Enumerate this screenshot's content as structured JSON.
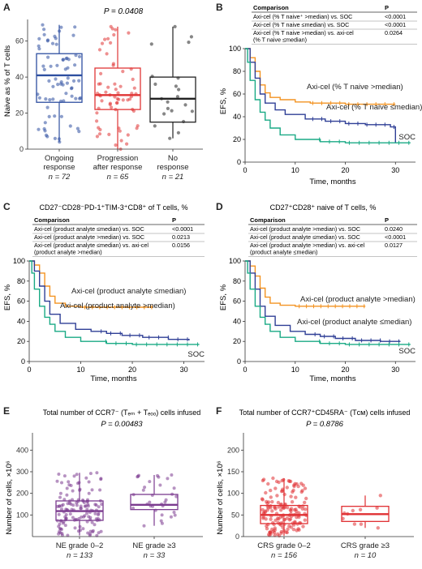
{
  "panels": {
    "A": {
      "letter": "A",
      "pvalue": "P = 0.0408",
      "ylabel": "Naive as % of T cells",
      "yticks": [
        "0",
        "20",
        "40",
        "60"
      ],
      "groups": [
        {
          "line1": "Ongoing",
          "line2": "response",
          "n": "n = 72"
        },
        {
          "line1": "Progression",
          "line2": "after response",
          "n": "n = 65"
        },
        {
          "line1": "No",
          "line2": "response",
          "n": "n = 21"
        }
      ]
    },
    "B": {
      "letter": "B",
      "table_headers": [
        "Comparison",
        "P"
      ],
      "table_rows": [
        [
          "Axi-cel (% T naive⁺ >median) vs. SOC",
          "<0.0001"
        ],
        [
          "Axi-cel (% T naive ≤median) vs. SOC",
          "<0.0001"
        ],
        [
          "Axi-cel (% T naive >median) vs. axi-cel",
          "0.0264"
        ],
        [
          "(% T naive ≤median)",
          ""
        ]
      ],
      "ylabel": "EFS, %",
      "xlabel": "Time, months",
      "yticks": [
        "0",
        "20",
        "40",
        "60",
        "80",
        "100"
      ],
      "xticks": [
        "0",
        "10",
        "20",
        "30"
      ],
      "curve_labels": [
        "Axi-cel (% T naive >median)",
        "Axi-cel (% T naive ≤median)",
        "SOC"
      ]
    },
    "C": {
      "letter": "C",
      "title": "CD27⁻CD28⁻PD-1⁺TIM-3⁺CD8⁺ of T cells, %",
      "table_headers": [
        "Comparison",
        "P"
      ],
      "table_rows": [
        [
          "Axi-cel (product analyte ≤median) vs. SOC",
          "<0.0001"
        ],
        [
          "Axi-cel (product analyte >median) vs. SOC",
          "0.0213"
        ],
        [
          "Axi-cel (product analyte ≤median) vs. axi-cel",
          "0.0156"
        ],
        [
          "(product analyte >median)",
          ""
        ]
      ],
      "ylabel": "EFS, %",
      "xlabel": "Time, months",
      "yticks": [
        "0",
        "20",
        "40",
        "60",
        "80",
        "100"
      ],
      "xticks": [
        "0",
        "10",
        "20",
        "30"
      ],
      "curve_labels": [
        "Axi-cel (product analyte ≤median)",
        "Axi-cel (product analyte >median)",
        "SOC"
      ]
    },
    "D": {
      "letter": "D",
      "title": "CD27⁺CD28⁺ naive of T cells, %",
      "table_headers": [
        "Comparison",
        "P"
      ],
      "table_rows": [
        [
          "Axi-cel (product analyte >median) vs. SOC",
          "0.0240"
        ],
        [
          "Axi-cel (product analyte ≤median) vs. SOC",
          "<0.0001"
        ],
        [
          "Axi-cel (product analyte >median) vs. axi-cel",
          "0.0127"
        ],
        [
          "(product analyte ≤median)",
          ""
        ]
      ],
      "ylabel": "EFS, %",
      "xlabel": "Time, months",
      "yticks": [
        "0",
        "20",
        "40",
        "60",
        "80",
        "100"
      ],
      "xticks": [
        "0",
        "10",
        "20",
        "30"
      ],
      "curve_labels": [
        "Axi-cel (product analyte >median)",
        "Axi-cel (product analyte ≤median)",
        "SOC"
      ]
    },
    "E": {
      "letter": "E",
      "title": "Total number of CCR7⁻ (Tₑₘ + Tₑₒₒ) cells infused",
      "pvalue": "P = 0.00483",
      "ylabel": "Number of cells, ×10⁶",
      "yticks": [
        "100",
        "200",
        "300",
        "400"
      ],
      "groups": [
        {
          "line1": "NE grade 0–2",
          "n": "n = 133"
        },
        {
          "line1": "NE grade ≥3",
          "n": "n = 33"
        }
      ]
    },
    "F": {
      "letter": "F",
      "title": "Total number of CCR7⁺CD45RA⁻ (Tᴄᴍ) cells infused",
      "pvalue": "P = 0.8786",
      "ylabel": "Number of cells, ×10⁶",
      "yticks": [
        "0",
        "50",
        "100",
        "150",
        "200"
      ],
      "groups": [
        {
          "line1": "CRS grade 0–2",
          "n": "n = 156"
        },
        {
          "line1": "CRS grade ≥3",
          "n": "n = 10"
        }
      ]
    }
  },
  "colors": {
    "blue": "#2e4fa0",
    "red": "#e03535",
    "black": "#222222",
    "orange": "#f39322",
    "navy": "#2f3f96",
    "green": "#1aaa85",
    "purple": "#7b3b8f",
    "crimson": "#e03033"
  },
  "chart_data": [
    {
      "type": "box",
      "panel": "A",
      "ylabel": "Naive as % of T cells",
      "ylim": [
        0,
        72
      ],
      "categories": [
        "Ongoing response",
        "Progression after response",
        "No response"
      ],
      "n": [
        72,
        65,
        21
      ],
      "boxes": [
        {
          "min": 4,
          "q1": 26,
          "median": 41,
          "q3": 53,
          "max": 69
        },
        {
          "min": 0,
          "q1": 22,
          "median": 30,
          "q3": 45,
          "max": 68
        },
        {
          "min": 6,
          "q1": 15,
          "median": 28,
          "q3": 40,
          "max": 68
        }
      ],
      "pvalue": 0.0408
    },
    {
      "type": "line",
      "panel": "B",
      "xlabel": "Time, months",
      "ylabel": "EFS, %",
      "xlim": [
        0,
        34
      ],
      "ylim": [
        0,
        100
      ],
      "series": [
        {
          "name": "Axi-cel (% T naive >median)",
          "x": [
            0,
            1,
            2,
            3,
            4,
            5,
            7,
            10,
            13,
            20,
            30
          ],
          "y": [
            100,
            92,
            80,
            68,
            61,
            57,
            55,
            53,
            52,
            51,
            51
          ]
        },
        {
          "name": "Axi-cel (% T naive ≤median)",
          "x": [
            0,
            1,
            2,
            3,
            4,
            6,
            8,
            12,
            16,
            20,
            24,
            29,
            30
          ],
          "y": [
            100,
            88,
            74,
            60,
            52,
            46,
            42,
            38,
            36,
            34,
            33,
            31,
            17
          ]
        },
        {
          "name": "SOC",
          "x": [
            0,
            0.5,
            1,
            2,
            3,
            4,
            5,
            7,
            10,
            15,
            20,
            30,
            33
          ],
          "y": [
            100,
            88,
            72,
            55,
            44,
            37,
            30,
            24,
            20,
            18,
            17,
            17,
            17
          ]
        }
      ]
    },
    {
      "type": "line",
      "panel": "C",
      "xlabel": "Time, months",
      "ylabel": "EFS, %",
      "xlim": [
        0,
        34
      ],
      "ylim": [
        0,
        100
      ],
      "series": [
        {
          "name": "Axi-cel (product analyte ≤median)",
          "x": [
            0,
            1,
            2,
            3,
            4,
            5,
            7,
            10,
            15,
            20,
            24
          ],
          "y": [
            100,
            96,
            88,
            75,
            65,
            58,
            55,
            54,
            54,
            54,
            54
          ]
        },
        {
          "name": "Axi-cel (product analyte >median)",
          "x": [
            0,
            1,
            2,
            3,
            4,
            6,
            9,
            12,
            15,
            18,
            22,
            27,
            31
          ],
          "y": [
            100,
            90,
            75,
            60,
            47,
            38,
            32,
            30,
            28,
            26,
            24,
            22,
            21
          ]
        },
        {
          "name": "SOC",
          "x": [
            0,
            0.5,
            1,
            2,
            3,
            4,
            5,
            7,
            10,
            15,
            20,
            30,
            33
          ],
          "y": [
            100,
            88,
            72,
            55,
            44,
            37,
            30,
            24,
            20,
            18,
            17,
            17,
            17
          ]
        }
      ]
    },
    {
      "type": "line",
      "panel": "D",
      "xlabel": "Time, months",
      "ylabel": "EFS, %",
      "xlim": [
        0,
        34
      ],
      "ylim": [
        0,
        100
      ],
      "series": [
        {
          "name": "Axi-cel (product analyte >median)",
          "x": [
            0,
            1,
            2,
            3,
            4,
            5,
            7,
            10,
            15,
            20,
            24
          ],
          "y": [
            100,
            95,
            85,
            73,
            64,
            58,
            56,
            55,
            55,
            55,
            55
          ]
        },
        {
          "name": "Axi-cel (product analyte ≤median)",
          "x": [
            0,
            1,
            2,
            3,
            4,
            6,
            9,
            12,
            15,
            18,
            22,
            27,
            31
          ],
          "y": [
            100,
            88,
            72,
            55,
            45,
            36,
            30,
            27,
            25,
            23,
            21,
            20,
            20
          ]
        },
        {
          "name": "SOC",
          "x": [
            0,
            0.5,
            1,
            2,
            3,
            4,
            5,
            7,
            10,
            15,
            20,
            30,
            33
          ],
          "y": [
            100,
            88,
            72,
            55,
            44,
            37,
            30,
            24,
            20,
            18,
            17,
            17,
            17
          ]
        }
      ]
    },
    {
      "type": "box",
      "panel": "E",
      "ylabel": "Number of cells, ×10⁶",
      "ylim": [
        0,
        480
      ],
      "categories": [
        "NE grade 0–2",
        "NE grade ≥3"
      ],
      "n": [
        133,
        33
      ],
      "boxes": [
        {
          "min": 5,
          "q1": 75,
          "median": 118,
          "q3": 165,
          "max": 295
        },
        {
          "min": 50,
          "q1": 125,
          "median": 147,
          "q3": 195,
          "max": 285
        }
      ],
      "pvalue": 0.00483
    },
    {
      "type": "box",
      "panel": "F",
      "ylabel": "Number of cells, ×10⁶",
      "ylim": [
        0,
        240
      ],
      "categories": [
        "CRS grade 0–2",
        "CRS grade ≥3"
      ],
      "n": [
        156,
        10
      ],
      "boxes": [
        {
          "min": 2,
          "q1": 30,
          "median": 50,
          "q3": 72,
          "max": 135
        },
        {
          "min": 20,
          "q1": 35,
          "median": 52,
          "q3": 70,
          "max": 95
        }
      ],
      "pvalue": 0.8786
    }
  ]
}
